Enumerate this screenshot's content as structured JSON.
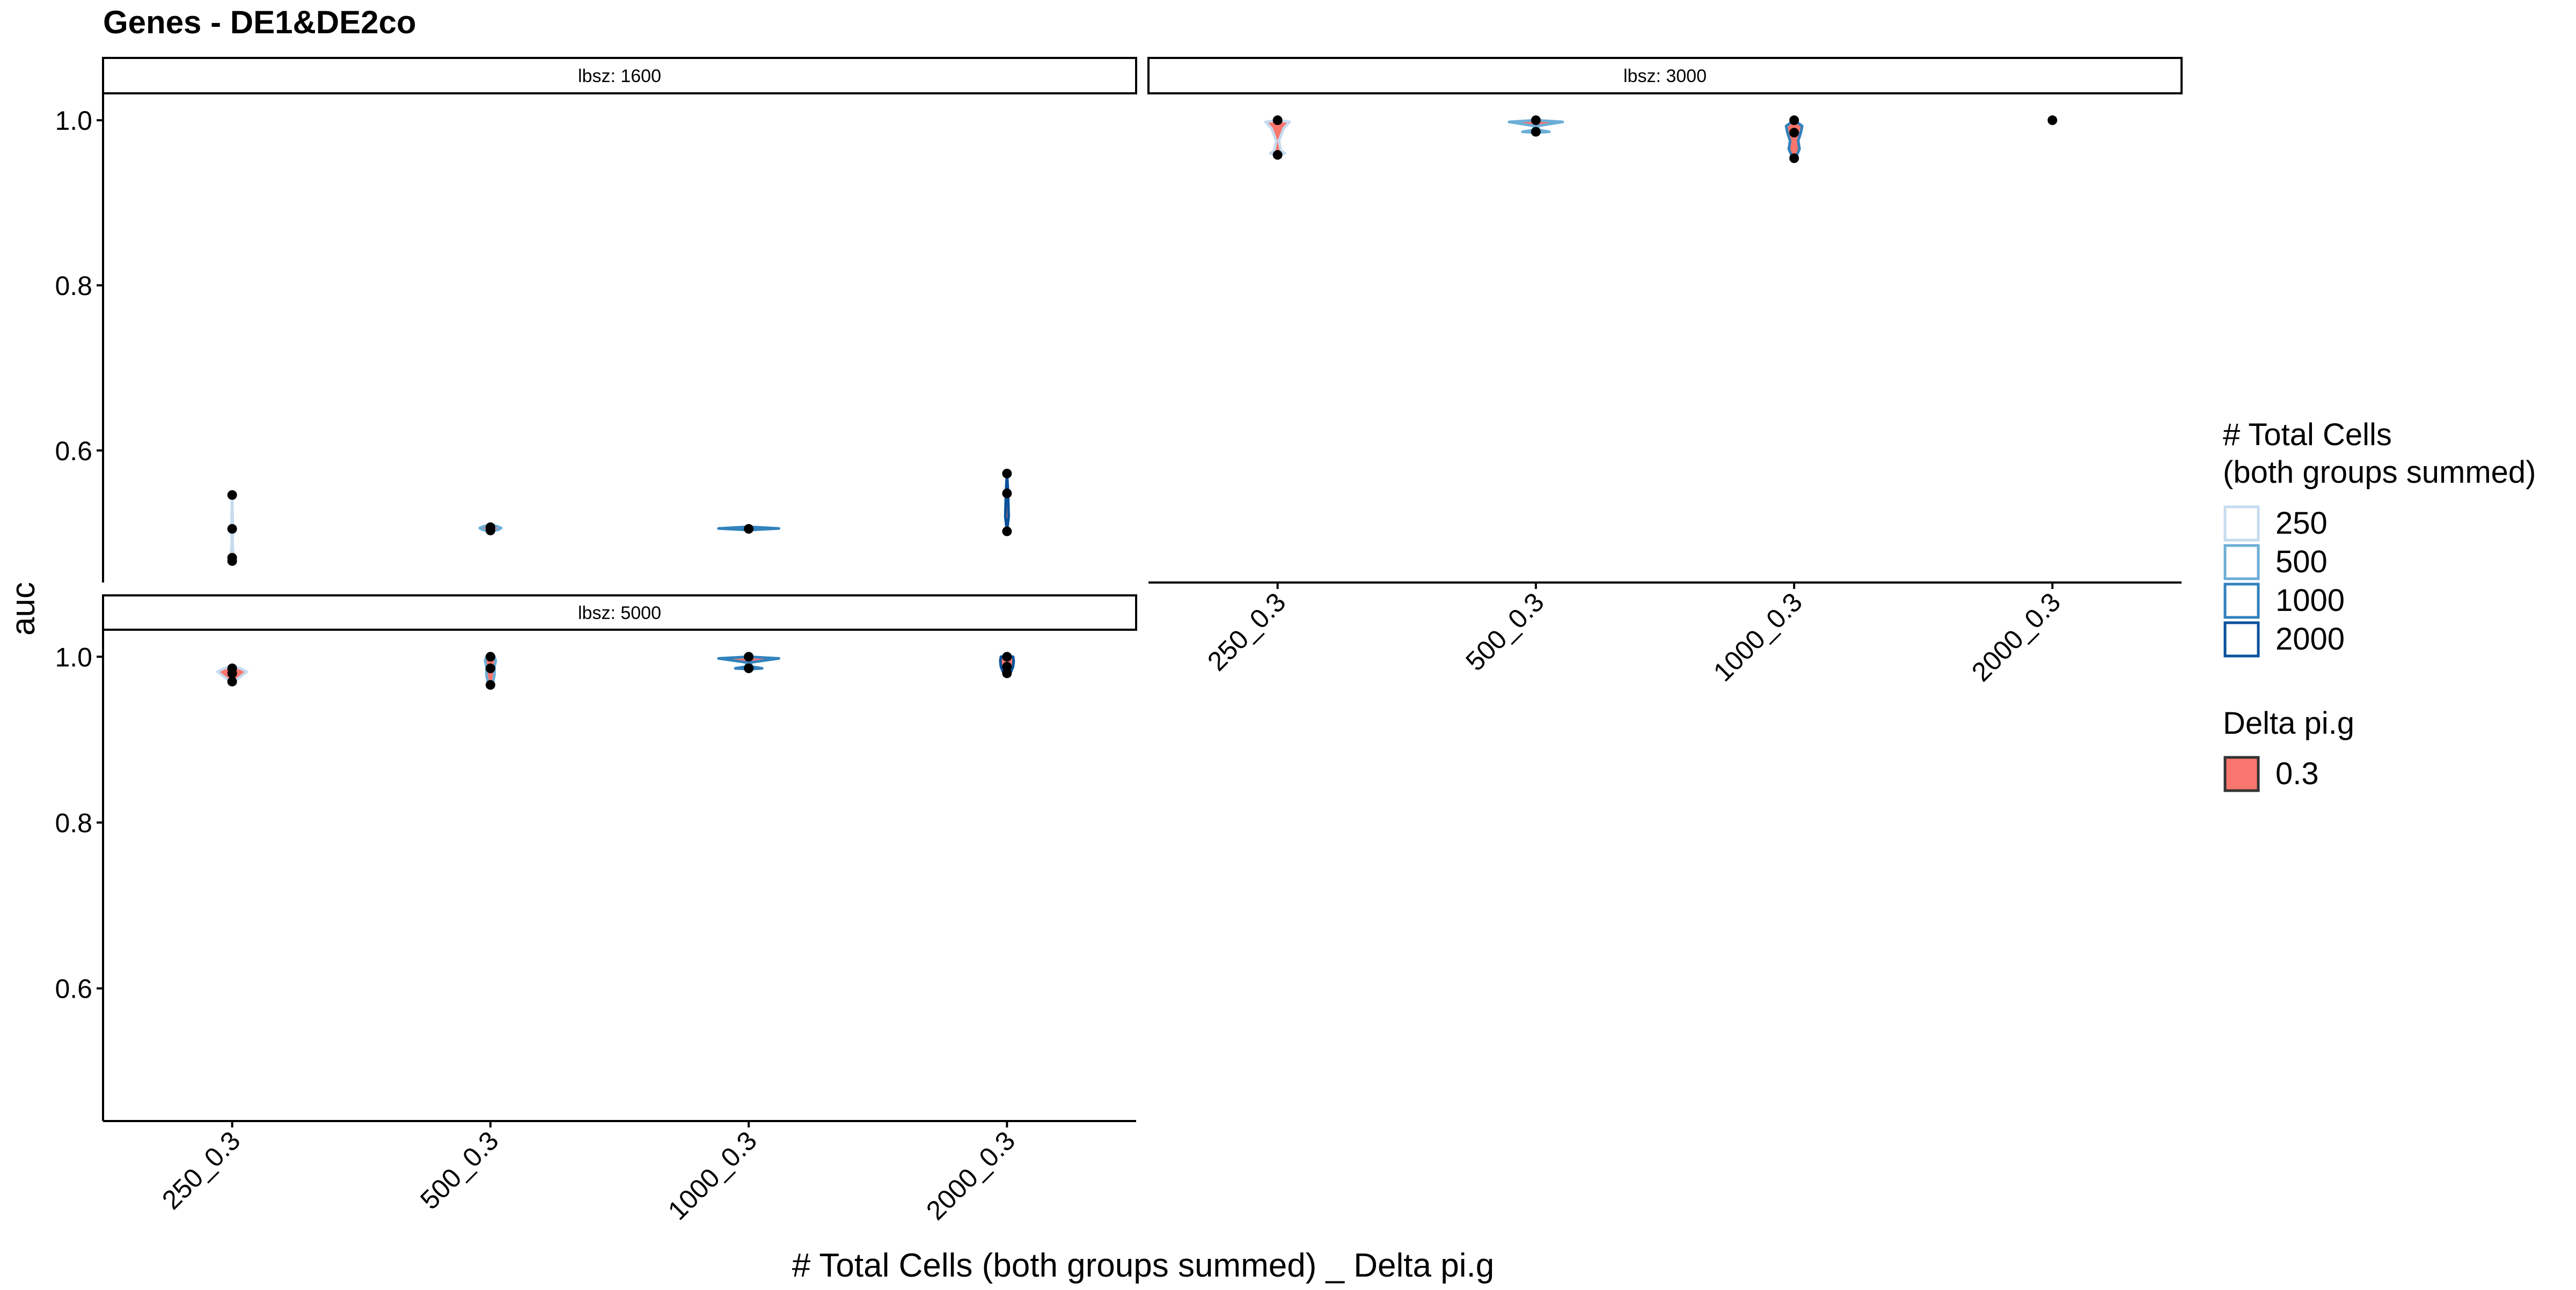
{
  "chart_data": {
    "type": "violin",
    "title": "Genes - DE1&DE2co",
    "xlabel": "# Total Cells (both groups summed) _ Delta pi.g",
    "ylabel": "auc",
    "ylim": [
      0.44,
      1.03
    ],
    "yticks": [
      0.6,
      0.8,
      1.0
    ],
    "ytick_labels": [
      "0.6",
      "0.8",
      "1.0"
    ],
    "categories": [
      "250_0.3",
      "500_0.3",
      "1000_0.3",
      "2000_0.3"
    ],
    "grid": false,
    "legend_placement": "right",
    "colors": {
      "total_cells": {
        "250": "#c6dbef",
        "500": "#6baed6",
        "1000": "#3182bd",
        "2000": "#08519c"
      },
      "delta_fill": "#f8766d",
      "point": "#000000",
      "strip_fill": "#ffffff",
      "strip_border": "#000000"
    },
    "legends": [
      {
        "title_lines": [
          "# Total Cells",
          "(both groups summed)"
        ],
        "items": [
          "250",
          "500",
          "1000",
          "2000"
        ]
      },
      {
        "title_lines": [
          "Delta pi.g"
        ],
        "items": [
          "0.3"
        ]
      }
    ],
    "panels": [
      {
        "strip": "lbsz: 1600",
        "groups": [
          {
            "category": "250_0.3",
            "violin": [
              [
                0.466,
                0.0
              ],
              [
                0.475,
                0.015
              ],
              [
                0.49,
                0.004
              ],
              [
                0.505,
                0.012
              ],
              [
                0.525,
                0.005
              ],
              [
                0.546,
                0.0
              ]
            ],
            "points": [
              0.546,
              0.505,
              0.47,
              0.466
            ]
          },
          {
            "category": "500_0.3",
            "violin": [
              [
                0.502,
                0.0
              ],
              [
                0.504,
                0.12
              ],
              [
                0.506,
                0.16
              ],
              [
                0.508,
                0.1
              ],
              [
                0.51,
                0.0
              ]
            ],
            "points": [
              0.503,
              0.507
            ]
          },
          {
            "category": "1000_0.3",
            "violin": [
              [
                0.5035,
                0.0
              ],
              [
                0.5045,
                0.22
              ],
              [
                0.5055,
                0.45
              ],
              [
                0.5065,
                0.22
              ],
              [
                0.5075,
                0.0
              ]
            ],
            "points": [
              0.505
            ]
          },
          {
            "category": "2000_0.3",
            "violin": [
              [
                0.502,
                0.0
              ],
              [
                0.52,
                0.025
              ],
              [
                0.55,
                0.015
              ],
              [
                0.572,
                0.0
              ]
            ],
            "points": [
              0.572,
              0.548,
              0.502
            ]
          }
        ]
      },
      {
        "strip": "lbsz: 3000",
        "groups": [
          {
            "category": "250_0.3",
            "violin": [
              [
                0.957,
                0.0
              ],
              [
                0.96,
                0.11
              ],
              [
                0.963,
                0.05
              ],
              [
                0.975,
                0.02
              ],
              [
                0.99,
                0.09
              ],
              [
                0.998,
                0.18
              ],
              [
                1.0,
                0.0
              ]
            ],
            "points": [
              1.0,
              0.958
            ]
          },
          {
            "category": "500_0.3",
            "violin": [
              [
                0.985,
                0.0
              ],
              [
                0.986,
                0.2
              ],
              [
                0.988,
                0.05
              ],
              [
                0.993,
                0.02
              ],
              [
                0.998,
                0.4
              ],
              [
                1.0,
                0.0
              ]
            ],
            "points": [
              1.0,
              0.986
            ]
          },
          {
            "category": "1000_0.3",
            "violin": [
              [
                0.953,
                0.0
              ],
              [
                0.956,
                0.03
              ],
              [
                0.965,
                0.08
              ],
              [
                0.975,
                0.06
              ],
              [
                0.985,
                0.1
              ],
              [
                0.993,
                0.12
              ],
              [
                1.0,
                0.0
              ]
            ],
            "points": [
              1.0,
              0.985,
              0.954
            ]
          },
          {
            "category": "2000_0.3",
            "violin": [],
            "points": [
              1.0
            ]
          }
        ]
      },
      {
        "strip": "lbsz: 5000",
        "groups": [
          {
            "category": "250_0.3",
            "violin": [
              [
                0.968,
                0.0
              ],
              [
                0.972,
                0.06
              ],
              [
                0.977,
                0.14
              ],
              [
                0.982,
                0.22
              ],
              [
                0.986,
                0.12
              ],
              [
                0.988,
                0.0
              ]
            ],
            "points": [
              0.986,
              0.98,
              0.97
            ]
          },
          {
            "category": "500_0.3",
            "violin": [
              [
                0.966,
                0.0
              ],
              [
                0.97,
                0.04
              ],
              [
                0.978,
                0.06
              ],
              [
                0.988,
                0.06
              ],
              [
                0.995,
                0.08
              ],
              [
                1.0,
                0.06
              ]
            ],
            "points": [
              1.0,
              0.986,
              0.966
            ]
          },
          {
            "category": "1000_0.3",
            "violin": [
              [
                0.985,
                0.0
              ],
              [
                0.986,
                0.2
              ],
              [
                0.988,
                0.05
              ],
              [
                0.993,
                0.02
              ],
              [
                0.998,
                0.45
              ],
              [
                1.0,
                0.0
              ]
            ],
            "points": [
              1.0,
              0.986
            ]
          },
          {
            "category": "2000_0.3",
            "violin": [
              [
                0.978,
                0.0
              ],
              [
                0.982,
                0.06
              ],
              [
                0.988,
                0.09
              ],
              [
                0.995,
                0.1
              ],
              [
                1.0,
                0.09
              ]
            ],
            "points": [
              1.0,
              0.988,
              0.98
            ]
          }
        ]
      }
    ]
  }
}
